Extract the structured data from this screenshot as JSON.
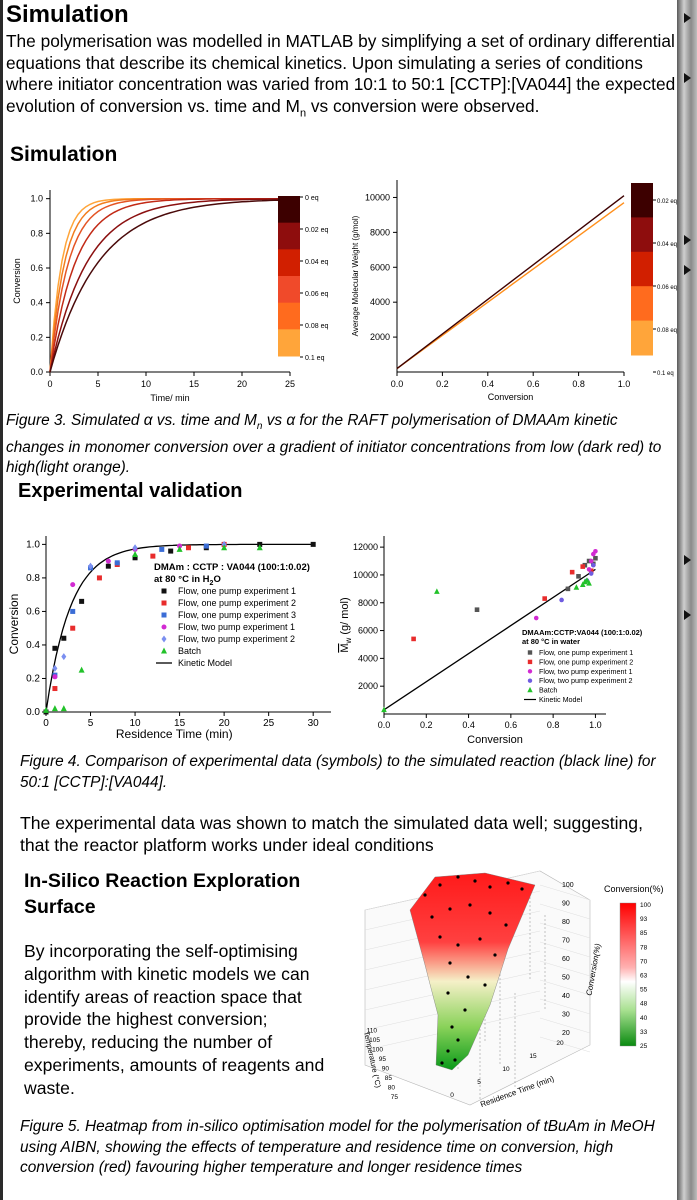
{
  "page": {
    "title": "Simulation",
    "intro_text": "The polymerisation was modelled in MATLAB by simplifying a set of ordinary differential equations that describe its chemical kinetics. Upon simulating a series of conditions where initiator concentration was varied from 10:1 to 50:1 [CCTP]:[VA044] the expected evolution of conversion vs. time and M",
    "intro_sub": "n",
    "intro_tail": " vs conversion were observed.",
    "section_sim": "Simulation",
    "fig3_caption_a": "Figure 3. Simulated α vs. time and M",
    "fig3_caption_sub": "n",
    "fig3_caption_b": " vs α  for the RAFT polymerisation of DMAAm kinetic changes in monomer conversion over a gradient of initiator concentrations from low (dark red) to high(light orange).",
    "section_exp": "Experimental validation",
    "fig4_caption": "Figure 4. Comparison of experimental data (symbols) to the simulated reaction (black line) for 50:1 [CCTP]:[VA044].",
    "exp_paragraph": "The experimental data was shown to match the simulated data well; suggesting, that the reactor platform works under ideal conditions",
    "section_insilico": "In-Silico Reaction Exploration Surface",
    "insilico_paragraph": "By incorporating the self-optimising algorithm with kinetic models we can identify areas of reaction space that provide the highest conversion; thereby, reducing the number of experiments, amounts of reagents and waste.",
    "fig5_caption": "Figure 5. Heatmap from in-silico optimisation model for the polymerisation of tBuAm in MeOH using AIBN, showing the effects of temperature and residence time on conversion, high conversion (red) favouring higher temperature and longer residence times"
  },
  "colors": {
    "dark_red": "#3d0000",
    "red": "#d11f00",
    "orange": "#ff8f1c",
    "light_orange": "#ffa53a",
    "black_series": "#111111",
    "red_series": "#e82c2c",
    "blue_series": "#3b6dd6",
    "magenta_series": "#d22ad2",
    "purple_series": "#7b56e0",
    "green_series": "#22c22a"
  },
  "chart_data": [
    {
      "type": "line",
      "title": "",
      "xlabel": "Time/ min",
      "ylabel": "Conversion",
      "xlim": [
        0,
        25
      ],
      "ylim": [
        0,
        1.05
      ],
      "xticks": [
        "0",
        "5",
        "10",
        "15",
        "20",
        "25"
      ],
      "yticks": [
        "0.0",
        "0.2",
        "0.4",
        "0.6",
        "0.8",
        "1.0"
      ],
      "series": [
        {
          "name": "0.1 eq",
          "rate": 0.82,
          "color": "#ffa53a"
        },
        {
          "name": "0.08 eq",
          "rate": 0.66,
          "color": "#f27d1e"
        },
        {
          "name": "0.06 eq",
          "rate": 0.52,
          "color": "#e45525"
        },
        {
          "name": "0.04 eq",
          "rate": 0.38,
          "color": "#c22a16"
        },
        {
          "name": "0.02 eq",
          "rate": 0.26,
          "color": "#8b1010"
        },
        {
          "name": "0 eq",
          "rate": 0.2,
          "color": "#4a0a0a"
        }
      ],
      "colorbar": {
        "labels": [
          "0 eq",
          "0.02 eq",
          "0.04 eq",
          "0.06 eq",
          "0.08 eq",
          "0.1 eq"
        ],
        "colors": [
          "#3d0000",
          "#8e0d0d",
          "#d11f00",
          "#f04a2a",
          "#ff6b1e",
          "#ffa53a"
        ]
      }
    },
    {
      "type": "line",
      "title": "",
      "xlabel": "Conversion",
      "ylabel": "Average Molecular Weight (g/mol)",
      "xlim": [
        0,
        1.0
      ],
      "ylim": [
        0,
        11000
      ],
      "xticks": [
        "0.0",
        "0.2",
        "0.4",
        "0.6",
        "0.8",
        "1.0"
      ],
      "yticks": [
        "2000",
        "4000",
        "6000",
        "8000",
        "10000"
      ],
      "series": [
        {
          "name": "0.1 eq",
          "x": [
            0,
            1.0
          ],
          "y": [
            200,
            9700
          ],
          "color": "#ff8f1c"
        },
        {
          "name": "0.02 eq",
          "x": [
            0,
            1.0
          ],
          "y": [
            200,
            10100
          ],
          "color": "#3d0000"
        }
      ],
      "colorbar": {
        "labels": [
          "0.02 eq",
          "0.04 eq",
          "0.06 eq",
          "0.08 eq",
          "0.1 eq"
        ],
        "colors": [
          "#3d0000",
          "#8e0d0d",
          "#d11f00",
          "#ff6b1e",
          "#ffa53a"
        ]
      }
    },
    {
      "type": "scatter",
      "title": "DMAm : CCTP : VA044 (100:1:0.02)",
      "subtitle_a": "at 80 °C in H",
      "subtitle_sub": "2",
      "subtitle_b": "O",
      "xlabel": "Residence Time (min)",
      "ylabel": "Conversion",
      "xlim": [
        0,
        32
      ],
      "ylim": [
        0,
        1.05
      ],
      "xticks": [
        "0",
        "5",
        "10",
        "15",
        "20",
        "25",
        "30"
      ],
      "yticks": [
        "0.0",
        "0.2",
        "0.4",
        "0.6",
        "0.8",
        "1.0"
      ],
      "series": [
        {
          "name": "Flow, one pump experiment 1",
          "marker": "square",
          "color": "#111111",
          "x": [
            0,
            1,
            2,
            4,
            7,
            10,
            14,
            18,
            24,
            30
          ],
          "y": [
            0,
            0.38,
            0.44,
            0.66,
            0.87,
            0.92,
            0.96,
            0.98,
            1.0,
            1.0
          ]
        },
        {
          "name": "Flow, one pump experiment 2",
          "marker": "square",
          "color": "#e82c2c",
          "x": [
            1,
            3,
            6,
            8,
            12,
            16,
            20
          ],
          "y": [
            0.14,
            0.5,
            0.8,
            0.88,
            0.93,
            0.98,
            1.0
          ]
        },
        {
          "name": "Flow, one pump experiment 3",
          "marker": "square",
          "color": "#3b6dd6",
          "x": [
            1,
            3,
            5,
            8,
            13,
            18
          ],
          "y": [
            0.22,
            0.6,
            0.86,
            0.89,
            0.97,
            0.99
          ]
        },
        {
          "name": "Flow, two pump experiment 1",
          "marker": "circle",
          "color": "#d22ad2",
          "x": [
            1,
            3,
            7,
            10,
            15
          ],
          "y": [
            0.21,
            0.76,
            0.9,
            0.97,
            0.99
          ]
        },
        {
          "name": "Flow, two pump experiment 2",
          "marker": "diamond",
          "color": "#7b8ff0",
          "x": [
            1,
            2,
            5,
            10,
            20
          ],
          "y": [
            0.26,
            0.33,
            0.87,
            0.98,
            1.0
          ]
        },
        {
          "name": "Batch",
          "marker": "triangle",
          "color": "#22c22a",
          "x": [
            0,
            1,
            2,
            4,
            10,
            15,
            20,
            24
          ],
          "y": [
            0.01,
            0.02,
            0.02,
            0.25,
            0.94,
            0.97,
            0.98,
            0.98
          ]
        },
        {
          "name": "Kinetic Model",
          "marker": "line",
          "color": "#000000",
          "rate": 0.36
        }
      ]
    },
    {
      "type": "scatter",
      "title": "DMAAm:CCTP:VA044 (100:1:0.02)",
      "subtitle": "at 80 °C in water",
      "xlabel": "Conversion",
      "ylabel": "M",
      "ylabel_sub": "w",
      "ylabel_tail": " (g/ mol)",
      "xlim": [
        0,
        1.05
      ],
      "ylim": [
        0,
        12800
      ],
      "xticks": [
        "0.0",
        "0.2",
        "0.4",
        "0.6",
        "0.8",
        "1.0"
      ],
      "yticks": [
        "2000",
        "4000",
        "6000",
        "8000",
        "10000",
        "12000"
      ],
      "series": [
        {
          "name": "Flow, one pump experiment 1",
          "marker": "square",
          "color": "#555555",
          "x": [
            0.44,
            0.87,
            0.92,
            0.95,
            0.97,
            0.99,
            1.0
          ],
          "y": [
            7500,
            9000,
            9900,
            10700,
            11000,
            10800,
            11200
          ]
        },
        {
          "name": "Flow, one pump experiment 2",
          "marker": "square",
          "color": "#e82c2c",
          "x": [
            0.14,
            0.76,
            0.89,
            0.94,
            0.98
          ],
          "y": [
            5400,
            8300,
            10200,
            10600,
            10300
          ]
        },
        {
          "name": "Flow, two pump experiment 1",
          "marker": "circle",
          "color": "#d22ad2",
          "x": [
            0.72,
            0.97,
            0.98,
            0.99,
            1.0
          ],
          "y": [
            6900,
            10400,
            11000,
            11500,
            11700
          ]
        },
        {
          "name": "Flow, two pump experiment 2",
          "marker": "circle",
          "color": "#6f5ce0",
          "x": [
            0.84,
            0.96,
            0.98,
            0.99
          ],
          "y": [
            8200,
            9600,
            10100,
            10700
          ]
        },
        {
          "name": "Batch",
          "marker": "triangle",
          "color": "#22c22a",
          "x": [
            0,
            0.25,
            0.91,
            0.94,
            0.95,
            0.96,
            0.97
          ],
          "y": [
            300,
            8800,
            9100,
            9300,
            9500,
            9600,
            9400
          ]
        },
        {
          "name": "Kinetic Model",
          "marker": "line",
          "color": "#000000",
          "x": [
            0,
            1.0
          ],
          "y": [
            300,
            10400
          ]
        }
      ]
    },
    {
      "type": "heatmap",
      "title": "Conversion(%)",
      "xlabel": "Residence Time (min)",
      "ylabel": "Temperature (°C)",
      "zlabel": "Conversion(%)",
      "x_ticks": [
        "0",
        "5",
        "10",
        "15",
        "20"
      ],
      "y_ticks": [
        "75",
        "80",
        "85",
        "90",
        "95",
        "100",
        "105",
        "110"
      ],
      "z_ticks": [
        "20",
        "30",
        "40",
        "50",
        "60",
        "70",
        "80",
        "90",
        "100"
      ],
      "colorbar_labels": [
        "100",
        "93",
        "85",
        "78",
        "70",
        "63",
        "55",
        "48",
        "40",
        "33",
        "25"
      ],
      "z_range": [
        25,
        100
      ]
    }
  ]
}
